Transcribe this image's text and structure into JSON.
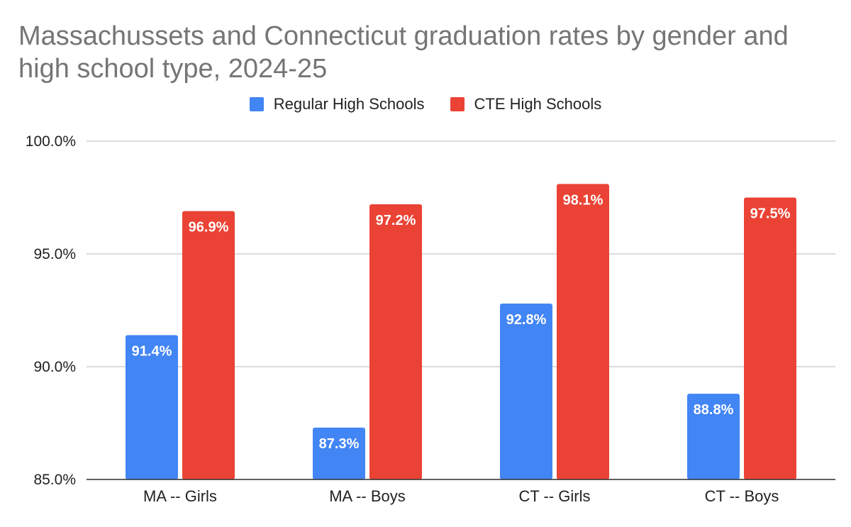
{
  "chart_data": {
    "type": "bar",
    "title": "Massachussets and Connecticut graduation rates by gender and high school type, 2024-25",
    "categories": [
      "MA -- Girls",
      "MA -- Boys",
      "CT -- Girls",
      "CT -- Boys"
    ],
    "series": [
      {
        "name": "Regular High Schools",
        "color": "#4285f4",
        "values": [
          91.4,
          87.3,
          92.8,
          88.8
        ],
        "labels": [
          "91.4%",
          "87.3%",
          "92.8%",
          "88.8%"
        ]
      },
      {
        "name": "CTE High Schools",
        "color": "#ea4335",
        "values": [
          96.9,
          97.2,
          98.1,
          97.5
        ],
        "labels": [
          "96.9%",
          "97.2%",
          "98.1%",
          "97.5%"
        ]
      }
    ],
    "ylim": [
      85,
      100
    ],
    "yticks": [
      85,
      90,
      95,
      100
    ],
    "ytick_labels": [
      "85.0%",
      "90.0%",
      "95.0%",
      "100.0%"
    ],
    "xlabel": "",
    "ylabel": "",
    "grid": true,
    "legend_position": "top-center"
  }
}
